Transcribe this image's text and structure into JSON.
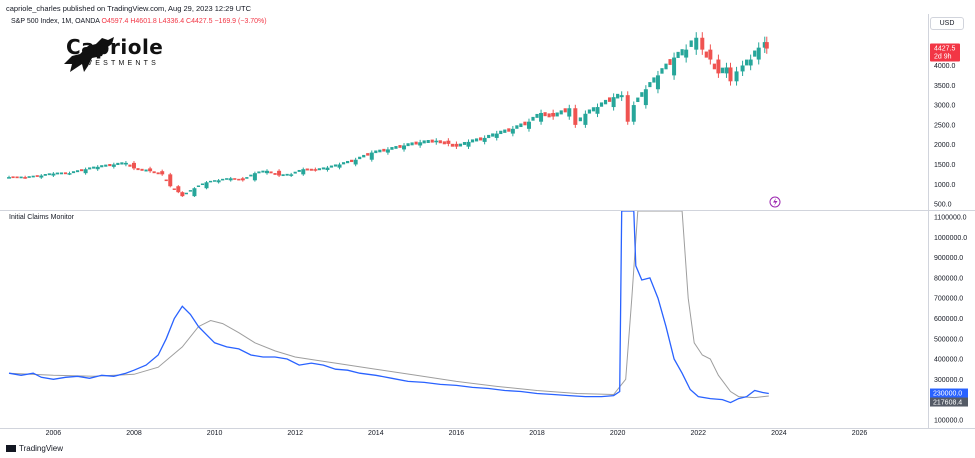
{
  "header": {
    "publisher": "capriole_charles published on TradingView.com, Aug 29, 2023 12:29 UTC",
    "currency": "USD"
  },
  "symbol_line": {
    "symbol": "S&P 500 Index, 1M, OANDA",
    "open": "O4597.4",
    "high": "H4601.8",
    "low": "L4336.4",
    "close": "C4427.5",
    "change": "−169.9 (−3.70%)"
  },
  "logo": {
    "name": "Capriole",
    "subtitle": "INVESTMENTS"
  },
  "indicator_title": "Initial Claims Monitor",
  "footer": {
    "brand": "TradingView"
  },
  "colors": {
    "up": "#26a69a",
    "down": "#ef5350",
    "claims_line": "#2962ff",
    "average_line": "#9e9e9e",
    "price_tag": "#f23645",
    "claims_tag": "#2962ff",
    "average_tag": "#555b66"
  },
  "price_tag": {
    "value": "4427.5",
    "countdown": "2d 9h"
  },
  "claims_tags": {
    "claims": "230000.0",
    "average": "217608.4"
  },
  "event_icon": "lightning-icon",
  "chart_data": [
    {
      "type": "candlestick",
      "title": "S&P 500 Index, 1M, OANDA",
      "x_domain": [
        2004.8,
        2027.7
      ],
      "ylim": [
        350,
        5300
      ],
      "y_ticks": [
        "4000.0",
        "3500.0",
        "3000.0",
        "2500.0",
        "2000.0",
        "1500.0",
        "1000.0",
        "500.0"
      ],
      "points": [
        [
          2004.9,
          1180
        ],
        [
          2005.3,
          1170
        ],
        [
          2005.7,
          1220
        ],
        [
          2006.0,
          1270
        ],
        [
          2006.4,
          1280
        ],
        [
          2006.8,
          1380
        ],
        [
          2007.1,
          1440
        ],
        [
          2007.5,
          1500
        ],
        [
          2007.8,
          1540
        ],
        [
          2008.0,
          1400
        ],
        [
          2008.4,
          1330
        ],
        [
          2008.7,
          1250
        ],
        [
          2008.9,
          950
        ],
        [
          2009.1,
          800
        ],
        [
          2009.2,
          700
        ],
        [
          2009.5,
          900
        ],
        [
          2009.8,
          1050
        ],
        [
          2010.1,
          1100
        ],
        [
          2010.4,
          1150
        ],
        [
          2010.7,
          1100
        ],
        [
          2011.0,
          1280
        ],
        [
          2011.3,
          1340
        ],
        [
          2011.6,
          1220
        ],
        [
          2011.9,
          1250
        ],
        [
          2012.2,
          1380
        ],
        [
          2012.5,
          1360
        ],
        [
          2012.8,
          1420
        ],
        [
          2013.1,
          1500
        ],
        [
          2013.5,
          1620
        ],
        [
          2013.9,
          1800
        ],
        [
          2014.3,
          1880
        ],
        [
          2014.7,
          1980
        ],
        [
          2015.1,
          2060
        ],
        [
          2015.5,
          2100
        ],
        [
          2015.8,
          2020
        ],
        [
          2016.0,
          1950
        ],
        [
          2016.3,
          2070
        ],
        [
          2016.7,
          2170
        ],
        [
          2017.0,
          2280
        ],
        [
          2017.4,
          2400
        ],
        [
          2017.8,
          2580
        ],
        [
          2018.1,
          2800
        ],
        [
          2018.4,
          2710
        ],
        [
          2018.8,
          2920
        ],
        [
          2018.95,
          2500
        ],
        [
          2019.2,
          2780
        ],
        [
          2019.5,
          2950
        ],
        [
          2019.9,
          3200
        ],
        [
          2020.1,
          3250
        ],
        [
          2020.25,
          2580
        ],
        [
          2020.4,
          3000
        ],
        [
          2020.7,
          3400
        ],
        [
          2021.0,
          3750
        ],
        [
          2021.4,
          4200
        ],
        [
          2021.7,
          4400
        ],
        [
          2021.95,
          4700
        ],
        [
          2022.1,
          4400
        ],
        [
          2022.3,
          4150
        ],
        [
          2022.5,
          3800
        ],
        [
          2022.7,
          3950
        ],
        [
          2022.8,
          3600
        ],
        [
          2022.95,
          3850
        ],
        [
          2023.1,
          4000
        ],
        [
          2023.3,
          4150
        ],
        [
          2023.5,
          4450
        ],
        [
          2023.65,
          4590
        ],
        [
          2023.7,
          4427.5
        ]
      ]
    },
    {
      "type": "line",
      "title": "Initial Claims Monitor",
      "ylim": [
        60000,
        1130000
      ],
      "y_ticks": [
        "1100000.0",
        "1000000.0",
        "900000.0",
        "800000.0",
        "700000.0",
        "600000.0",
        "500000.0",
        "400000.0",
        "300000.0",
        "200000.0",
        "100000.0"
      ],
      "x_ticks": [
        "2006",
        "2008",
        "2010",
        "2012",
        "2014",
        "2016",
        "2018",
        "2020",
        "2022",
        "2024",
        "2026"
      ],
      "x_tick_values": [
        2006,
        2008,
        2010,
        2012,
        2014,
        2016,
        2018,
        2020,
        2022,
        2024,
        2026
      ],
      "series": [
        {
          "values": [
            [
              2004.9,
              330000
            ],
            [
              2005.2,
              320000
            ],
            [
              2005.5,
              330000
            ],
            [
              2005.7,
              310000
            ],
            [
              2006.0,
              300000
            ],
            [
              2006.3,
              310000
            ],
            [
              2006.6,
              315000
            ],
            [
              2006.9,
              305000
            ],
            [
              2007.2,
              320000
            ],
            [
              2007.5,
              315000
            ],
            [
              2007.8,
              330000
            ],
            [
              2008.0,
              345000
            ],
            [
              2008.3,
              370000
            ],
            [
              2008.6,
              420000
            ],
            [
              2008.8,
              500000
            ],
            [
              2009.0,
              600000
            ],
            [
              2009.2,
              660000
            ],
            [
              2009.4,
              620000
            ],
            [
              2009.6,
              560000
            ],
            [
              2009.8,
              520000
            ],
            [
              2010.0,
              480000
            ],
            [
              2010.3,
              460000
            ],
            [
              2010.6,
              450000
            ],
            [
              2010.9,
              420000
            ],
            [
              2011.2,
              410000
            ],
            [
              2011.5,
              410000
            ],
            [
              2011.8,
              400000
            ],
            [
              2012.1,
              370000
            ],
            [
              2012.4,
              380000
            ],
            [
              2012.7,
              370000
            ],
            [
              2013.0,
              350000
            ],
            [
              2013.3,
              345000
            ],
            [
              2013.6,
              330000
            ],
            [
              2014.0,
              320000
            ],
            [
              2014.4,
              305000
            ],
            [
              2014.8,
              290000
            ],
            [
              2015.2,
              285000
            ],
            [
              2015.6,
              275000
            ],
            [
              2016.0,
              270000
            ],
            [
              2016.4,
              260000
            ],
            [
              2016.8,
              255000
            ],
            [
              2017.2,
              245000
            ],
            [
              2017.6,
              240000
            ],
            [
              2018.0,
              230000
            ],
            [
              2018.4,
              225000
            ],
            [
              2018.8,
              220000
            ],
            [
              2019.2,
              215000
            ],
            [
              2019.6,
              215000
            ],
            [
              2019.9,
              220000
            ],
            [
              2020.05,
              240000
            ],
            [
              2020.1,
              1130000
            ],
            [
              2020.15,
              1130000
            ],
            [
              2020.4,
              1130000
            ],
            [
              2020.45,
              860000
            ],
            [
              2020.6,
              790000
            ],
            [
              2020.8,
              800000
            ],
            [
              2021.0,
              700000
            ],
            [
              2021.2,
              560000
            ],
            [
              2021.4,
              400000
            ],
            [
              2021.6,
              330000
            ],
            [
              2021.8,
              250000
            ],
            [
              2022.0,
              215000
            ],
            [
              2022.3,
              205000
            ],
            [
              2022.6,
              200000
            ],
            [
              2022.8,
              185000
            ],
            [
              2023.0,
              205000
            ],
            [
              2023.2,
              215000
            ],
            [
              2023.4,
              245000
            ],
            [
              2023.6,
              235000
            ],
            [
              2023.75,
              230000
            ]
          ]
        },
        {
          "values": [
            [
              2004.9,
              330000
            ],
            [
              2006.0,
              320000
            ],
            [
              2007.0,
              315000
            ],
            [
              2008.0,
              325000
            ],
            [
              2008.6,
              360000
            ],
            [
              2009.2,
              460000
            ],
            [
              2009.6,
              560000
            ],
            [
              2009.9,
              590000
            ],
            [
              2010.2,
              575000
            ],
            [
              2010.6,
              530000
            ],
            [
              2011.0,
              480000
            ],
            [
              2011.5,
              440000
            ],
            [
              2012.0,
              410000
            ],
            [
              2012.5,
              395000
            ],
            [
              2013.0,
              380000
            ],
            [
              2014.0,
              350000
            ],
            [
              2015.0,
              320000
            ],
            [
              2016.0,
              290000
            ],
            [
              2017.0,
              265000
            ],
            [
              2018.0,
              245000
            ],
            [
              2019.0,
              230000
            ],
            [
              2019.9,
              225000
            ],
            [
              2020.2,
              300000
            ],
            [
              2020.35,
              700000
            ],
            [
              2020.5,
              1130000
            ],
            [
              2021.0,
              1130000
            ],
            [
              2021.3,
              1130000
            ],
            [
              2021.6,
              1130000
            ],
            [
              2021.75,
              700000
            ],
            [
              2021.9,
              480000
            ],
            [
              2022.1,
              420000
            ],
            [
              2022.3,
              400000
            ],
            [
              2022.5,
              320000
            ],
            [
              2022.8,
              240000
            ],
            [
              2023.0,
              215000
            ],
            [
              2023.4,
              210000
            ],
            [
              2023.75,
              217608.4
            ]
          ]
        }
      ]
    }
  ]
}
